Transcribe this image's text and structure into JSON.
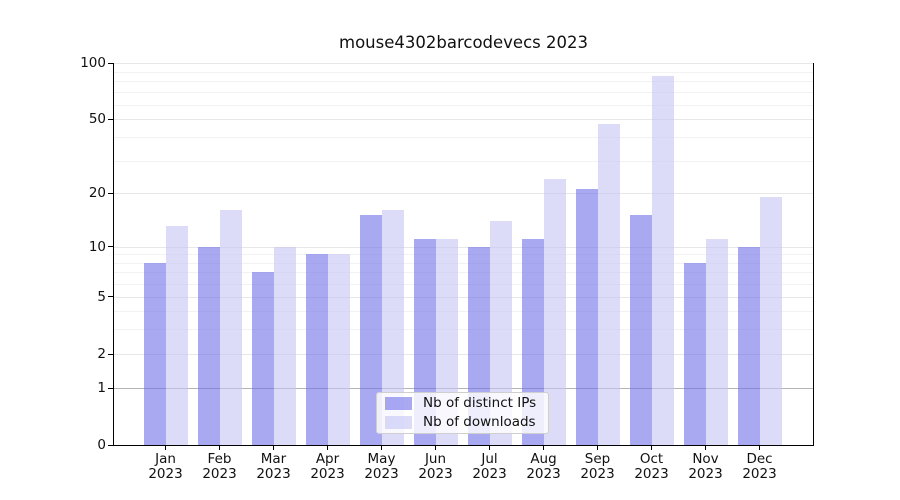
{
  "title": "mouse4302barcodevecs 2023",
  "chart_data": {
    "type": "bar",
    "title": "mouse4302barcodevecs 2023",
    "categories": [
      "Jan",
      "Feb",
      "Mar",
      "Apr",
      "May",
      "Jun",
      "Jul",
      "Aug",
      "Sep",
      "Oct",
      "Nov",
      "Dec"
    ],
    "year_label": "2023",
    "series": [
      {
        "name": "Nb of distinct IPs",
        "color": "#7070e9",
        "opacity": 0.6,
        "values": [
          8,
          10,
          7,
          9,
          15,
          11,
          10,
          11,
          21,
          15,
          8,
          10
        ]
      },
      {
        "name": "Nb of downloads",
        "color": "#c5c5f5",
        "opacity": 0.6,
        "values": [
          13,
          16,
          10,
          9,
          16,
          11,
          14,
          24,
          47,
          85,
          11,
          19
        ]
      }
    ],
    "yscale": "symlog",
    "ylim": [
      0,
      100
    ],
    "yticks": [
      0,
      1,
      2,
      5,
      10,
      20,
      50,
      100
    ],
    "minor_yticks": [
      3,
      4,
      6,
      7,
      8,
      9,
      30,
      40,
      60,
      70,
      80,
      90
    ],
    "grid": {
      "major_color": "#e7e7e7",
      "minor_color": "#f2f2f2",
      "unit_line_color": "#b5b5b5"
    },
    "legend_position": "lower center",
    "xlabel": "",
    "ylabel": ""
  }
}
